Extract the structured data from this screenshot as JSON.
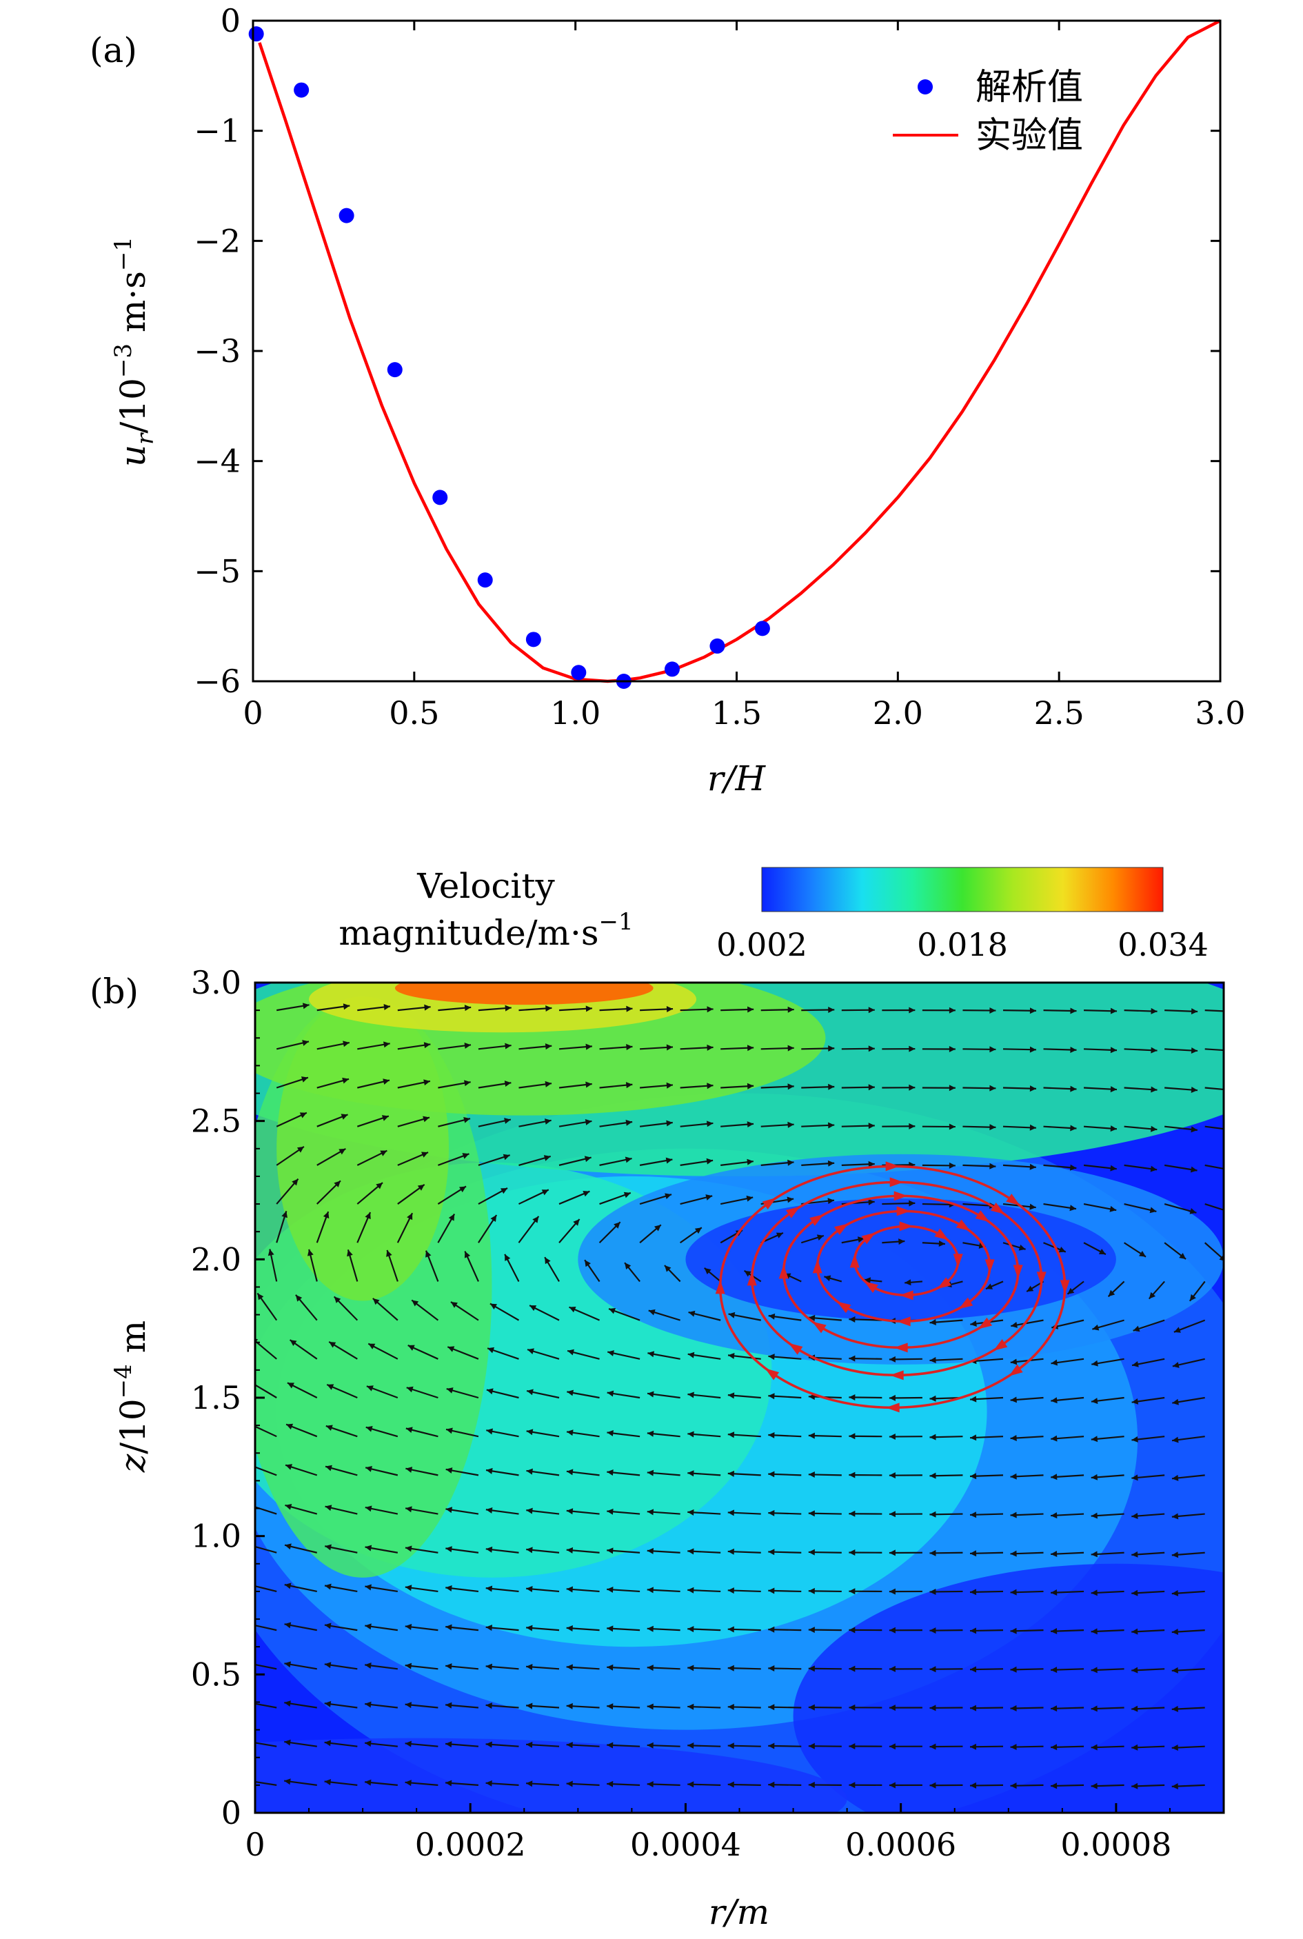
{
  "chart_data": [
    {
      "panel": "(a)",
      "type": "line",
      "xlabel": "r/H",
      "ylabel": "u_r/10^-3 m·s^-1",
      "xlim": [
        0,
        3.0
      ],
      "ylim": [
        -6,
        0
      ],
      "xticks": [
        "0",
        "0.5",
        "1.0",
        "1.5",
        "2.0",
        "2.5",
        "3.0"
      ],
      "yticks": [
        "0",
        "−1",
        "−2",
        "−3",
        "−4",
        "−5",
        "−6"
      ],
      "legend": {
        "position": "top-right",
        "entries": [
          "解析值",
          "实验值"
        ]
      },
      "series": [
        {
          "name": "解析值",
          "kind": "scatter",
          "color": "#0000ff",
          "x": [
            0.01,
            0.15,
            0.29,
            0.44,
            0.58,
            0.72,
            0.87,
            1.01,
            1.15,
            1.3,
            1.44,
            1.58
          ],
          "y": [
            -0.12,
            -0.63,
            -1.77,
            -3.17,
            -4.33,
            -5.08,
            -5.62,
            -5.92,
            -6.0,
            -5.89,
            -5.68,
            -5.52
          ]
        },
        {
          "name": "实验值",
          "kind": "line",
          "color": "#ff0000",
          "x": [
            0.02,
            0.1,
            0.2,
            0.3,
            0.4,
            0.5,
            0.6,
            0.7,
            0.8,
            0.9,
            1.0,
            1.1,
            1.15,
            1.2,
            1.3,
            1.4,
            1.5,
            1.6,
            1.7,
            1.8,
            1.9,
            2.0,
            2.1,
            2.2,
            2.3,
            2.4,
            2.5,
            2.6,
            2.7,
            2.8,
            2.9,
            3.0
          ],
          "y": [
            -0.2,
            -0.9,
            -1.8,
            -2.7,
            -3.5,
            -4.2,
            -4.8,
            -5.3,
            -5.65,
            -5.88,
            -5.98,
            -6.0,
            -5.99,
            -5.97,
            -5.9,
            -5.78,
            -5.62,
            -5.43,
            -5.2,
            -4.94,
            -4.65,
            -4.33,
            -3.97,
            -3.55,
            -3.08,
            -2.57,
            -2.03,
            -1.48,
            -0.95,
            -0.5,
            -0.15,
            0.0
          ]
        }
      ]
    },
    {
      "panel": "(b)",
      "type": "heatmap",
      "xlabel": "r/m",
      "ylabel": "z/10^-4 m",
      "xlim": [
        0,
        0.0009
      ],
      "ylim": [
        0,
        3.0
      ],
      "xticks": [
        "0",
        "0.0002",
        "0.0004",
        "0.0006",
        "0.0008"
      ],
      "yticks": [
        "0",
        "0.5",
        "1.0",
        "1.5",
        "2.0",
        "2.5",
        "3.0"
      ],
      "colorbar": {
        "title_line1": "Velocity",
        "title_line2": "magnitude/m·s",
        "title_sup": "−1",
        "ticks": [
          "0.002",
          "0.018",
          "0.034"
        ],
        "range": [
          0.002,
          0.034
        ],
        "colors": [
          "#0a24ff",
          "#1880ff",
          "#19dff0",
          "#21f0a0",
          "#3ce530",
          "#a8e820",
          "#f0e020",
          "#ff8a00",
          "#ff1a00"
        ]
      },
      "vortex_center": {
        "r": 0.0006,
        "z": 2.0
      },
      "streamline_color": "#dd2222",
      "vector_color": "#111111"
    }
  ]
}
